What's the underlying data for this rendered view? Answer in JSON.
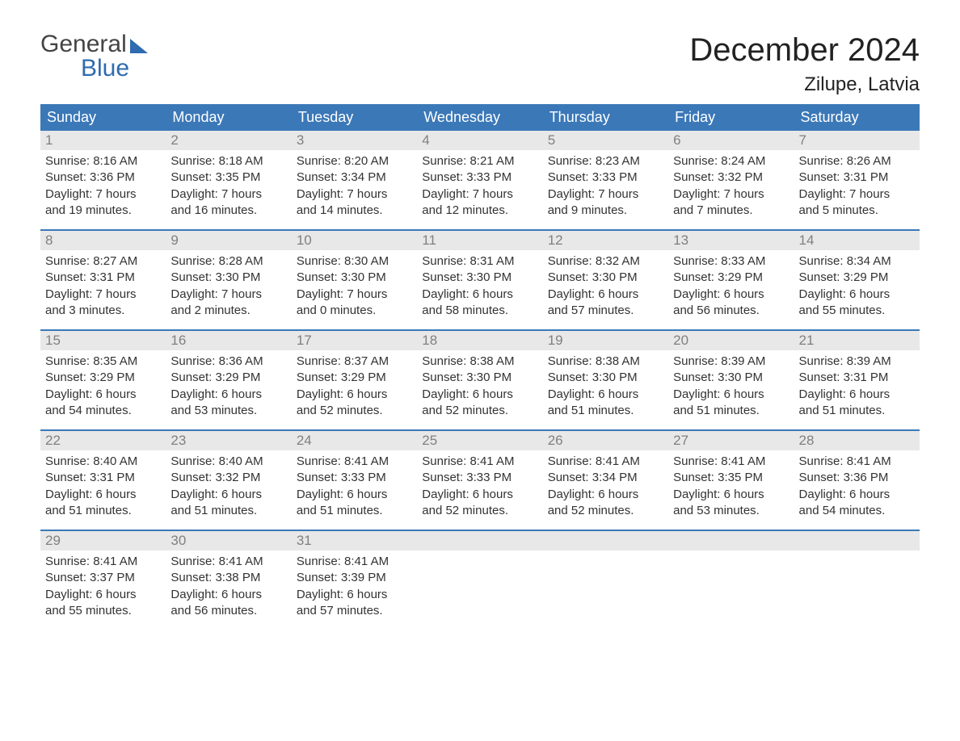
{
  "logo": {
    "general": "General",
    "blue": "Blue"
  },
  "title": "December 2024",
  "location": "Zilupe, Latvia",
  "colors": {
    "header_bg": "#3b78b8",
    "header_text": "#ffffff",
    "daynum_bg": "#e8e8e8",
    "daynum_text": "#808080",
    "week_border": "#3b78b8",
    "body_text": "#333333",
    "logo_blue": "#2e6bb0",
    "logo_gray": "#444444",
    "background": "#ffffff"
  },
  "typography": {
    "title_fontsize": 40,
    "location_fontsize": 24,
    "dayheader_fontsize": 18,
    "daynum_fontsize": 17,
    "body_fontsize": 15,
    "logo_fontsize": 30,
    "font_family": "Arial"
  },
  "day_headers": [
    "Sunday",
    "Monday",
    "Tuesday",
    "Wednesday",
    "Thursday",
    "Friday",
    "Saturday"
  ],
  "weeks": [
    [
      {
        "num": "1",
        "sunrise": "Sunrise: 8:16 AM",
        "sunset": "Sunset: 3:36 PM",
        "daylight": "Daylight: 7 hours\nand 19 minutes."
      },
      {
        "num": "2",
        "sunrise": "Sunrise: 8:18 AM",
        "sunset": "Sunset: 3:35 PM",
        "daylight": "Daylight: 7 hours\nand 16 minutes."
      },
      {
        "num": "3",
        "sunrise": "Sunrise: 8:20 AM",
        "sunset": "Sunset: 3:34 PM",
        "daylight": "Daylight: 7 hours\nand 14 minutes."
      },
      {
        "num": "4",
        "sunrise": "Sunrise: 8:21 AM",
        "sunset": "Sunset: 3:33 PM",
        "daylight": "Daylight: 7 hours\nand 12 minutes."
      },
      {
        "num": "5",
        "sunrise": "Sunrise: 8:23 AM",
        "sunset": "Sunset: 3:33 PM",
        "daylight": "Daylight: 7 hours\nand 9 minutes."
      },
      {
        "num": "6",
        "sunrise": "Sunrise: 8:24 AM",
        "sunset": "Sunset: 3:32 PM",
        "daylight": "Daylight: 7 hours\nand 7 minutes."
      },
      {
        "num": "7",
        "sunrise": "Sunrise: 8:26 AM",
        "sunset": "Sunset: 3:31 PM",
        "daylight": "Daylight: 7 hours\nand 5 minutes."
      }
    ],
    [
      {
        "num": "8",
        "sunrise": "Sunrise: 8:27 AM",
        "sunset": "Sunset: 3:31 PM",
        "daylight": "Daylight: 7 hours\nand 3 minutes."
      },
      {
        "num": "9",
        "sunrise": "Sunrise: 8:28 AM",
        "sunset": "Sunset: 3:30 PM",
        "daylight": "Daylight: 7 hours\nand 2 minutes."
      },
      {
        "num": "10",
        "sunrise": "Sunrise: 8:30 AM",
        "sunset": "Sunset: 3:30 PM",
        "daylight": "Daylight: 7 hours\nand 0 minutes."
      },
      {
        "num": "11",
        "sunrise": "Sunrise: 8:31 AM",
        "sunset": "Sunset: 3:30 PM",
        "daylight": "Daylight: 6 hours\nand 58 minutes."
      },
      {
        "num": "12",
        "sunrise": "Sunrise: 8:32 AM",
        "sunset": "Sunset: 3:30 PM",
        "daylight": "Daylight: 6 hours\nand 57 minutes."
      },
      {
        "num": "13",
        "sunrise": "Sunrise: 8:33 AM",
        "sunset": "Sunset: 3:29 PM",
        "daylight": "Daylight: 6 hours\nand 56 minutes."
      },
      {
        "num": "14",
        "sunrise": "Sunrise: 8:34 AM",
        "sunset": "Sunset: 3:29 PM",
        "daylight": "Daylight: 6 hours\nand 55 minutes."
      }
    ],
    [
      {
        "num": "15",
        "sunrise": "Sunrise: 8:35 AM",
        "sunset": "Sunset: 3:29 PM",
        "daylight": "Daylight: 6 hours\nand 54 minutes."
      },
      {
        "num": "16",
        "sunrise": "Sunrise: 8:36 AM",
        "sunset": "Sunset: 3:29 PM",
        "daylight": "Daylight: 6 hours\nand 53 minutes."
      },
      {
        "num": "17",
        "sunrise": "Sunrise: 8:37 AM",
        "sunset": "Sunset: 3:29 PM",
        "daylight": "Daylight: 6 hours\nand 52 minutes."
      },
      {
        "num": "18",
        "sunrise": "Sunrise: 8:38 AM",
        "sunset": "Sunset: 3:30 PM",
        "daylight": "Daylight: 6 hours\nand 52 minutes."
      },
      {
        "num": "19",
        "sunrise": "Sunrise: 8:38 AM",
        "sunset": "Sunset: 3:30 PM",
        "daylight": "Daylight: 6 hours\nand 51 minutes."
      },
      {
        "num": "20",
        "sunrise": "Sunrise: 8:39 AM",
        "sunset": "Sunset: 3:30 PM",
        "daylight": "Daylight: 6 hours\nand 51 minutes."
      },
      {
        "num": "21",
        "sunrise": "Sunrise: 8:39 AM",
        "sunset": "Sunset: 3:31 PM",
        "daylight": "Daylight: 6 hours\nand 51 minutes."
      }
    ],
    [
      {
        "num": "22",
        "sunrise": "Sunrise: 8:40 AM",
        "sunset": "Sunset: 3:31 PM",
        "daylight": "Daylight: 6 hours\nand 51 minutes."
      },
      {
        "num": "23",
        "sunrise": "Sunrise: 8:40 AM",
        "sunset": "Sunset: 3:32 PM",
        "daylight": "Daylight: 6 hours\nand 51 minutes."
      },
      {
        "num": "24",
        "sunrise": "Sunrise: 8:41 AM",
        "sunset": "Sunset: 3:33 PM",
        "daylight": "Daylight: 6 hours\nand 51 minutes."
      },
      {
        "num": "25",
        "sunrise": "Sunrise: 8:41 AM",
        "sunset": "Sunset: 3:33 PM",
        "daylight": "Daylight: 6 hours\nand 52 minutes."
      },
      {
        "num": "26",
        "sunrise": "Sunrise: 8:41 AM",
        "sunset": "Sunset: 3:34 PM",
        "daylight": "Daylight: 6 hours\nand 52 minutes."
      },
      {
        "num": "27",
        "sunrise": "Sunrise: 8:41 AM",
        "sunset": "Sunset: 3:35 PM",
        "daylight": "Daylight: 6 hours\nand 53 minutes."
      },
      {
        "num": "28",
        "sunrise": "Sunrise: 8:41 AM",
        "sunset": "Sunset: 3:36 PM",
        "daylight": "Daylight: 6 hours\nand 54 minutes."
      }
    ],
    [
      {
        "num": "29",
        "sunrise": "Sunrise: 8:41 AM",
        "sunset": "Sunset: 3:37 PM",
        "daylight": "Daylight: 6 hours\nand 55 minutes."
      },
      {
        "num": "30",
        "sunrise": "Sunrise: 8:41 AM",
        "sunset": "Sunset: 3:38 PM",
        "daylight": "Daylight: 6 hours\nand 56 minutes."
      },
      {
        "num": "31",
        "sunrise": "Sunrise: 8:41 AM",
        "sunset": "Sunset: 3:39 PM",
        "daylight": "Daylight: 6 hours\nand 57 minutes."
      },
      {
        "num": "",
        "sunrise": "",
        "sunset": "",
        "daylight": ""
      },
      {
        "num": "",
        "sunrise": "",
        "sunset": "",
        "daylight": ""
      },
      {
        "num": "",
        "sunrise": "",
        "sunset": "",
        "daylight": ""
      },
      {
        "num": "",
        "sunrise": "",
        "sunset": "",
        "daylight": ""
      }
    ]
  ]
}
